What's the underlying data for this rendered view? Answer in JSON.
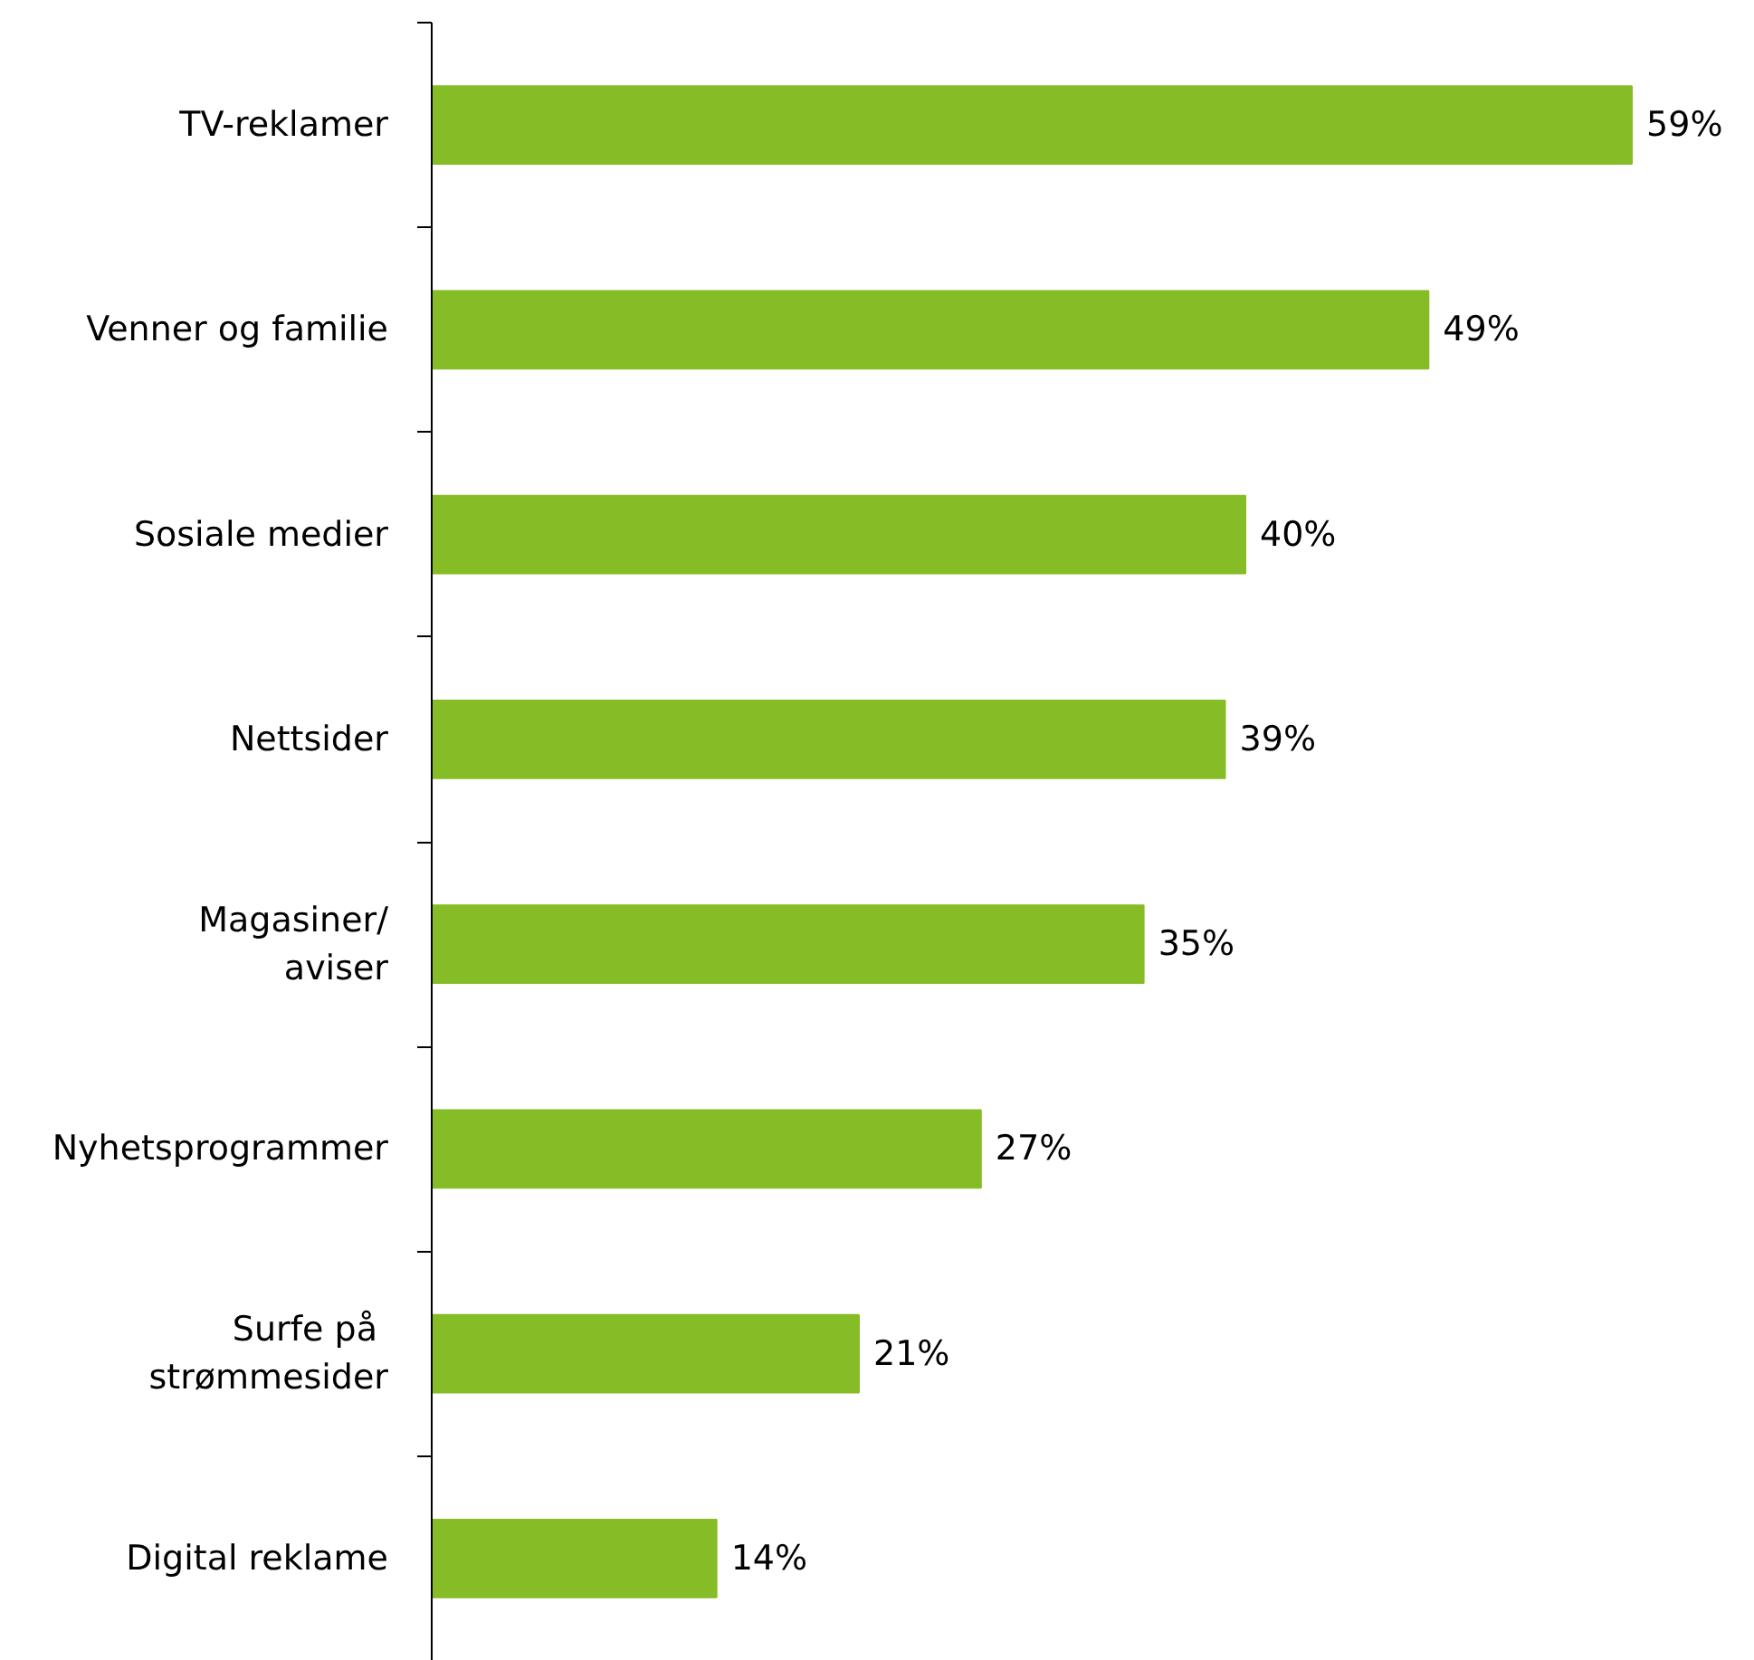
{
  "chart_data": {
    "type": "bar",
    "orientation": "horizontal",
    "color": "#86bc25",
    "categories": [
      "TV-reklamer",
      "Venner og familie",
      "Sosiale medier",
      "Nettsider",
      "Magasiner/\naviser",
      "Nyhetsprogrammer",
      "Surfe på \nstrømmesider",
      "Digital reklame"
    ],
    "values": [
      59,
      49,
      40,
      39,
      35,
      27,
      21,
      14
    ],
    "value_labels": [
      "59%",
      "49%",
      "40%",
      "39%",
      "35%",
      "27%",
      "21%",
      "14%"
    ]
  }
}
